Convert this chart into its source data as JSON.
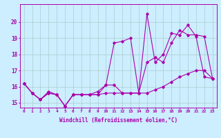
{
  "xlabel": "Windchill (Refroidissement éolien,°C)",
  "ylabel": "",
  "bg_color": "#cceeff",
  "line_color": "#aa00aa",
  "grid_color": "#aacccc",
  "xlim": [
    -0.5,
    23.5
  ],
  "ylim": [
    14.7,
    21.1
  ],
  "xticks": [
    0,
    1,
    2,
    3,
    4,
    5,
    6,
    7,
    8,
    9,
    10,
    11,
    12,
    13,
    14,
    15,
    16,
    17,
    18,
    19,
    20,
    21,
    22,
    23
  ],
  "yticks": [
    15,
    16,
    17,
    18,
    19,
    20
  ],
  "series": [
    [
      16.2,
      15.6,
      15.2,
      15.6,
      15.5,
      14.8,
      15.5,
      15.5,
      15.5,
      15.7,
      16.1,
      16.1,
      15.6,
      15.6,
      15.6,
      20.5,
      17.5,
      18.0,
      19.3,
      19.2,
      19.8,
      19.1,
      16.6,
      16.5
    ],
    [
      16.2,
      15.6,
      15.2,
      15.6,
      15.5,
      14.8,
      15.5,
      15.5,
      15.5,
      15.5,
      16.1,
      18.7,
      18.8,
      19.0,
      15.6,
      17.5,
      17.8,
      17.5,
      18.7,
      19.5,
      19.2,
      19.2,
      19.1,
      16.5
    ],
    [
      16.2,
      15.6,
      15.2,
      15.7,
      15.5,
      14.8,
      15.5,
      15.5,
      15.5,
      15.5,
      15.6,
      15.6,
      15.6,
      15.6,
      15.6,
      15.6,
      15.8,
      16.0,
      16.3,
      16.6,
      16.8,
      17.0,
      17.0,
      16.5
    ]
  ]
}
